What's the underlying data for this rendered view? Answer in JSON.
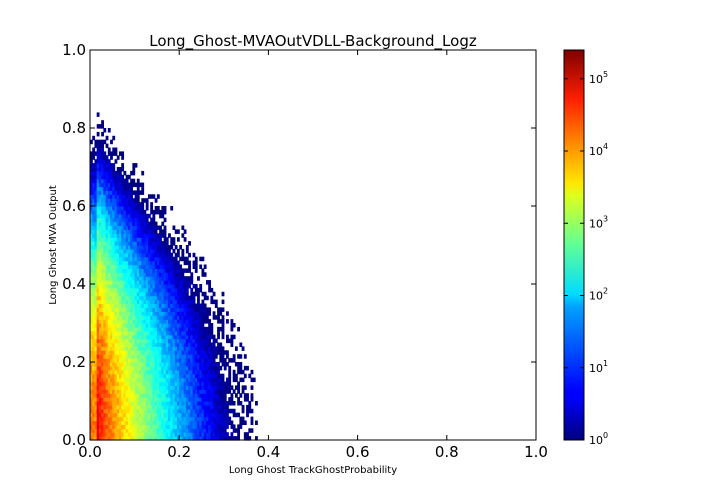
{
  "chart_data": {
    "type": "heatmap",
    "title": "Long_Ghost-MVAOutVDLL-Background_Logz",
    "xlabel": "Long Ghost TrackGhostProbability",
    "ylabel": "Long Ghost MVA Output",
    "xlim": [
      0.0,
      1.0
    ],
    "ylim": [
      0.0,
      1.0
    ],
    "x_ticks": [
      "0.0",
      "0.2",
      "0.4",
      "0.6",
      "0.8",
      "1.0"
    ],
    "y_ticks": [
      "0.0",
      "0.2",
      "0.4",
      "0.6",
      "0.8",
      "1.0"
    ],
    "data_x_range": [
      0.0,
      0.4
    ],
    "colorbar": {
      "scale": "log",
      "colormap": "jet",
      "range": [
        1,
        250000
      ],
      "tick_base": "10",
      "tick_exponents": [
        "0",
        "1",
        "2",
        "3",
        "4",
        "5"
      ]
    },
    "density_description": "Counts peak near x≈0.0–0.03, y≈0.0–0.1 (~1e4–1e5); a high-density ridge extends up along low x to y≈0.5, falling off toward x=0.4 and y=1.0.",
    "colors": {
      "low": "#00007f",
      "high": "#7f0000"
    }
  }
}
